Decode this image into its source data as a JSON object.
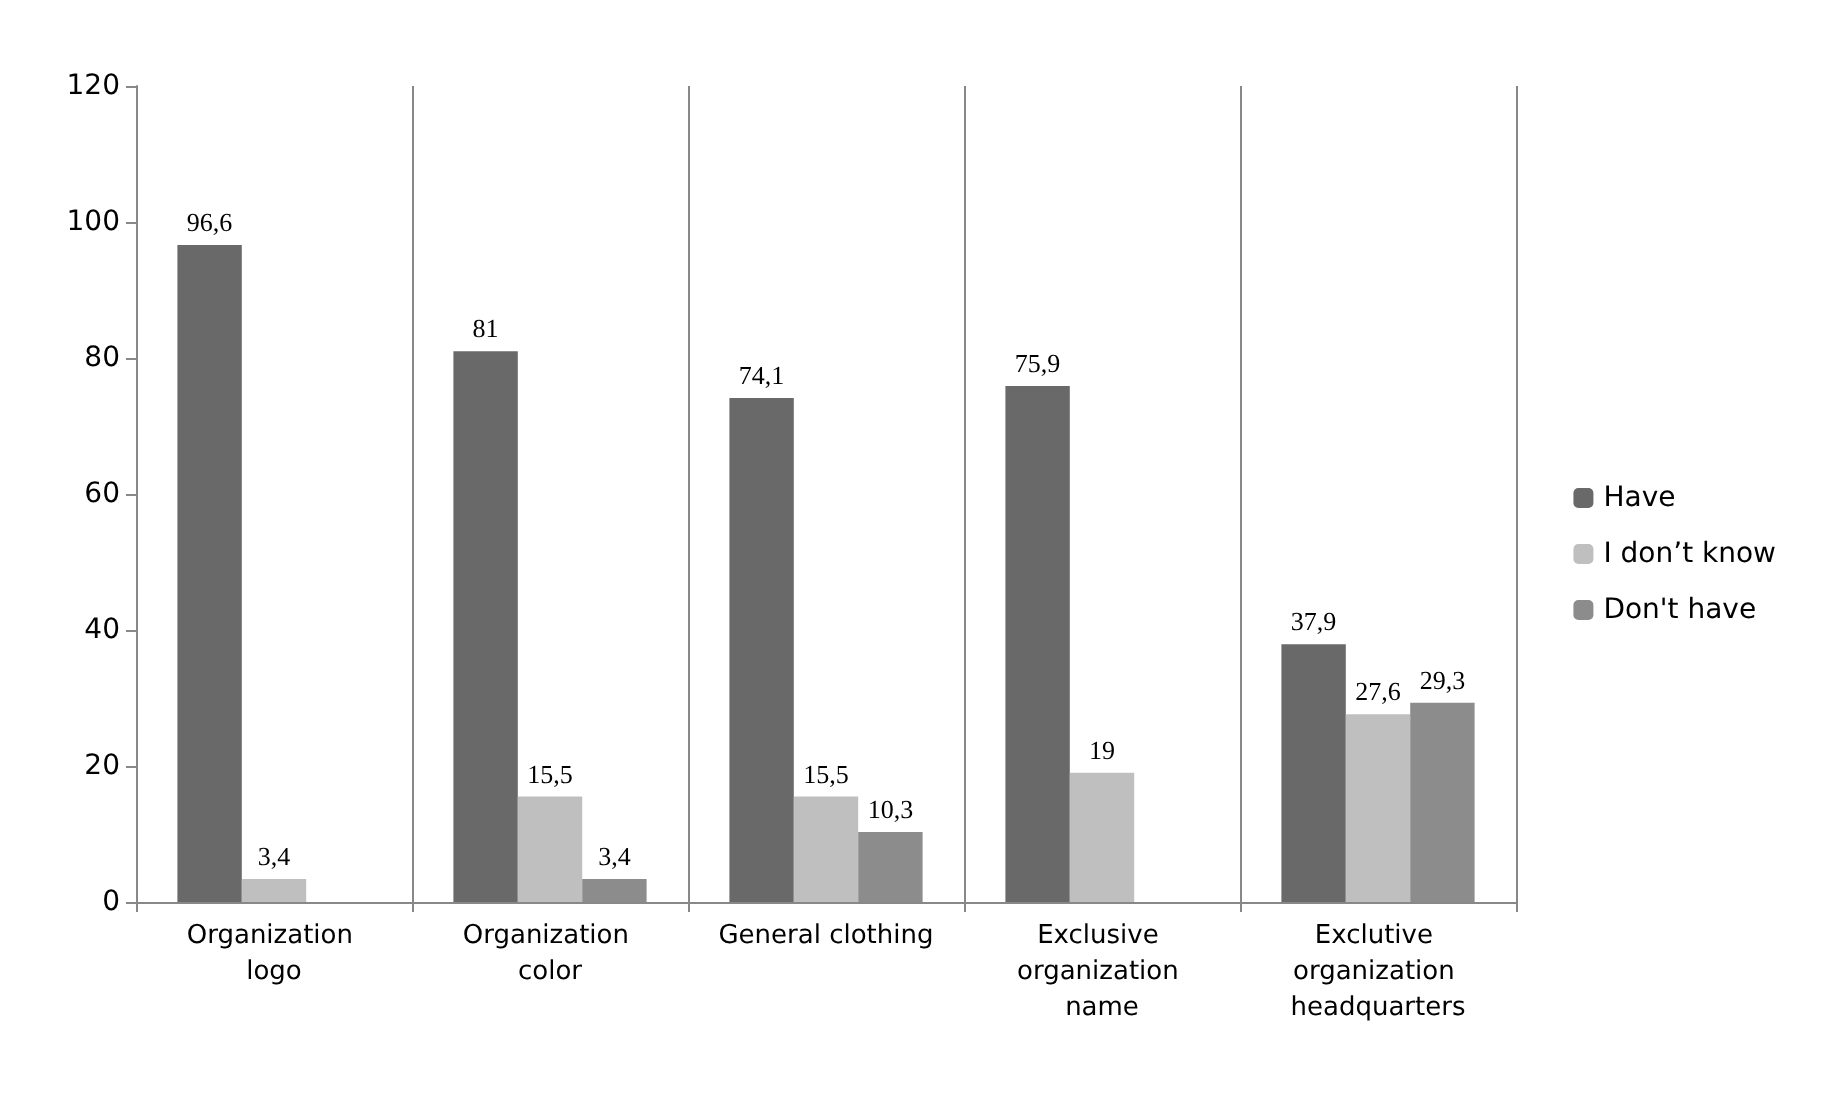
{
  "chart_data": {
    "type": "bar",
    "categories": [
      "Organization logo",
      "Organization color",
      "General clothing",
      "Exclusive organization name",
      "Exclutive organization headquarters"
    ],
    "series": [
      {
        "name": "Have",
        "color": "#696969",
        "values": [
          96.6,
          81,
          74.1,
          75.9,
          37.9
        ],
        "value_labels": [
          "96,6",
          "81",
          "74,1",
          "75,9",
          "37,9"
        ]
      },
      {
        "name": "I don’t know",
        "color": "#bfbfbf",
        "values": [
          3.4,
          15.5,
          15.5,
          19,
          27.6
        ],
        "value_labels": [
          "3,4",
          "15,5",
          "15,5",
          "19",
          "27,6"
        ]
      },
      {
        "name": "Don't have",
        "color": "#8c8c8c",
        "values": [
          null,
          3.4,
          10.3,
          null,
          29.3
        ],
        "value_labels": [
          null,
          "3,4",
          "10,3",
          null,
          "29,3"
        ]
      }
    ],
    "ylim": [
      0,
      120
    ],
    "yticks": [
      0,
      20,
      40,
      60,
      80,
      100,
      120
    ],
    "grid": "x",
    "legend": "right"
  }
}
